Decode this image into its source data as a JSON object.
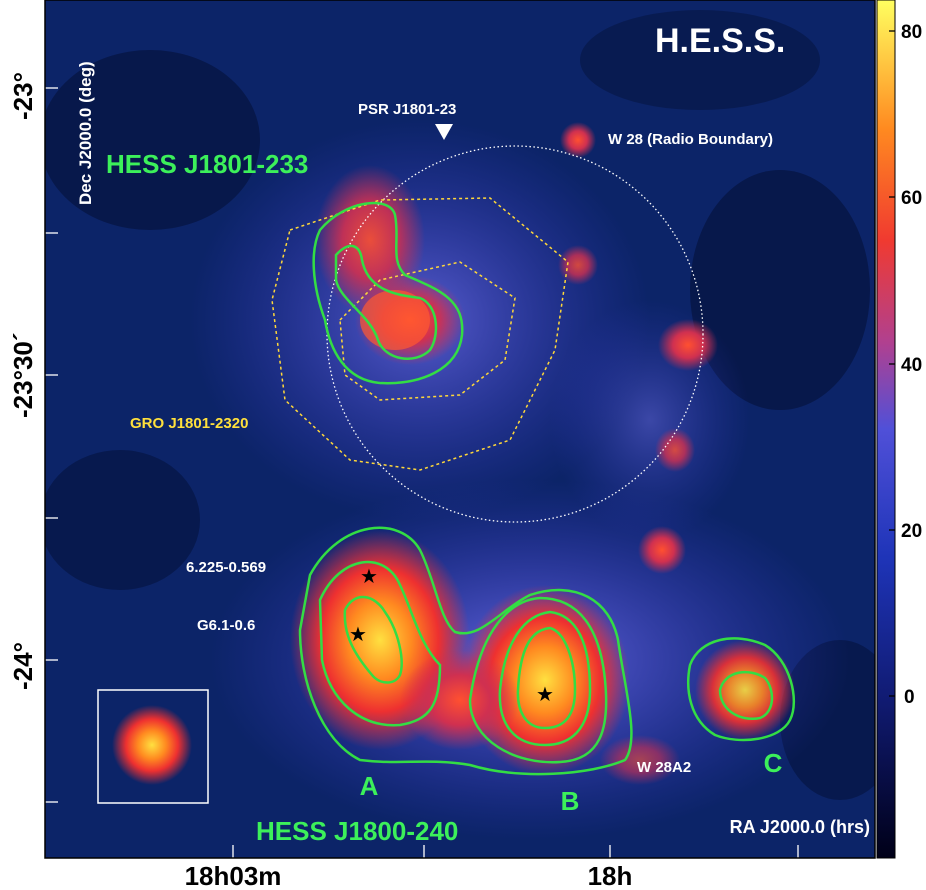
{
  "figure": {
    "instrument": "H.E.S.S.",
    "sources": {
      "north": "HESS J1801-233",
      "south": "HESS J1800-240",
      "pulsar": "PSR J1801-23",
      "snr": "W 28 (Radio Boundary)",
      "gro": "GRO J1801-2320",
      "star1": "6.225-0.569",
      "star2": "G6.1-0.6",
      "w28a2": "W 28A2"
    },
    "region_letters": [
      "A",
      "B",
      "C"
    ],
    "axes": {
      "dec_label": "Dec J2000.0 (deg)",
      "ra_label": "RA J2000.0 (hrs)",
      "dec_ticks": [
        "-23°",
        "-23°30´",
        "-24°"
      ],
      "ra_ticks": [
        "18h03m",
        "18h"
      ]
    },
    "colorbar": {
      "ticks": [
        "80",
        "60",
        "40",
        "20",
        "0"
      ]
    },
    "colors": {
      "background": "#0a1f5c",
      "contour": "#33dd44",
      "gro_contour": "#ffd83a",
      "radio_boundary": "#ffffff",
      "label_green": "#3cf05a",
      "label_yellow": "#ffe03c"
    }
  }
}
